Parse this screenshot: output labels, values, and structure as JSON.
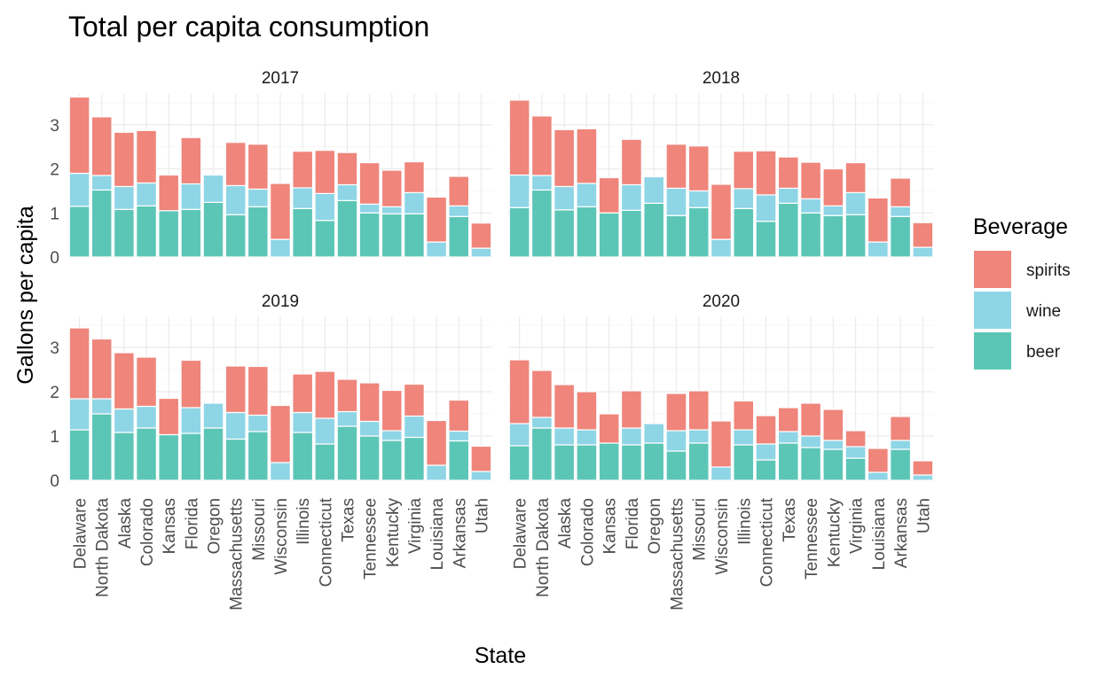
{
  "chart_data": {
    "type": "bar",
    "stacked": true,
    "title": "Total per capita consumption",
    "xlabel": "State",
    "ylabel": "Gallons per capita",
    "ylim": [
      0,
      3.7
    ],
    "yticks": [
      "0",
      "1",
      "2",
      "3"
    ],
    "grid": true,
    "legend": {
      "title": "Beverage",
      "position": "right",
      "items": [
        "spirits",
        "wine",
        "beer"
      ]
    },
    "colors": {
      "spirits": "#ef857b",
      "wine": "#8ed5e6",
      "beer": "#5cc6b6"
    },
    "categories": [
      "Delaware",
      "North Dakota",
      "Alaska",
      "Colorado",
      "Kansas",
      "Florida",
      "Oregon",
      "Massachusetts",
      "Missouri",
      "Wisconsin",
      "Illinois",
      "Connecticut",
      "Texas",
      "Tennessee",
      "Kentucky",
      "Virginia",
      "Louisiana",
      "Arkansas",
      "Utah"
    ],
    "panels": [
      {
        "facet": "2017",
        "series": [
          {
            "name": "beer",
            "values": [
              1.15,
              1.52,
              1.08,
              1.16,
              1.05,
              1.08,
              1.24,
              0.96,
              1.14,
              0.0,
              1.1,
              0.83,
              1.28,
              1.0,
              0.98,
              0.98,
              0.0,
              0.92,
              0.0
            ]
          },
          {
            "name": "wine",
            "values": [
              0.75,
              0.33,
              0.52,
              0.52,
              0.0,
              0.58,
              0.62,
              0.66,
              0.4,
              0.4,
              0.47,
              0.61,
              0.36,
              0.2,
              0.16,
              0.48,
              0.34,
              0.24,
              0.2
            ]
          },
          {
            "name": "spirits",
            "values": [
              1.73,
              1.33,
              1.23,
              1.19,
              0.81,
              1.05,
              0.0,
              0.98,
              1.02,
              1.27,
              0.83,
              0.98,
              0.73,
              0.94,
              0.83,
              0.7,
              1.02,
              0.67,
              0.57
            ]
          }
        ]
      },
      {
        "facet": "2018",
        "series": [
          {
            "name": "beer",
            "values": [
              1.12,
              1.52,
              1.07,
              1.14,
              1.0,
              1.06,
              1.22,
              0.94,
              1.12,
              0.0,
              1.1,
              0.81,
              1.22,
              1.0,
              0.94,
              0.96,
              0.0,
              0.92,
              0.0
            ]
          },
          {
            "name": "wine",
            "values": [
              0.74,
              0.33,
              0.53,
              0.53,
              0.0,
              0.58,
              0.6,
              0.62,
              0.38,
              0.4,
              0.45,
              0.6,
              0.34,
              0.32,
              0.22,
              0.5,
              0.34,
              0.22,
              0.22
            ]
          },
          {
            "name": "spirits",
            "values": [
              1.7,
              1.35,
              1.29,
              1.24,
              0.8,
              1.03,
              0.0,
              1.0,
              1.02,
              1.25,
              0.85,
              1.0,
              0.71,
              0.83,
              0.84,
              0.68,
              1.0,
              0.65,
              0.56
            ]
          }
        ]
      },
      {
        "facet": "2019",
        "series": [
          {
            "name": "beer",
            "values": [
              1.14,
              1.5,
              1.08,
              1.18,
              1.03,
              1.06,
              1.18,
              0.93,
              1.1,
              0.0,
              1.08,
              0.82,
              1.22,
              1.0,
              0.9,
              0.97,
              0.0,
              0.89,
              0.0
            ]
          },
          {
            "name": "wine",
            "values": [
              0.7,
              0.34,
              0.53,
              0.49,
              0.0,
              0.58,
              0.56,
              0.6,
              0.37,
              0.4,
              0.45,
              0.58,
              0.33,
              0.33,
              0.22,
              0.48,
              0.34,
              0.22,
              0.2
            ]
          },
          {
            "name": "spirits",
            "values": [
              1.6,
              1.35,
              1.27,
              1.11,
              0.82,
              1.07,
              0.0,
              1.05,
              1.1,
              1.29,
              0.87,
              1.06,
              0.73,
              0.87,
              0.91,
              0.72,
              1.01,
              0.7,
              0.57
            ]
          }
        ]
      },
      {
        "facet": "2020",
        "series": [
          {
            "name": "beer",
            "values": [
              0.78,
              1.18,
              0.8,
              0.8,
              0.84,
              0.8,
              0.84,
              0.66,
              0.84,
              0.0,
              0.8,
              0.46,
              0.84,
              0.74,
              0.7,
              0.5,
              0.0,
              0.7,
              0.0
            ]
          },
          {
            "name": "wine",
            "values": [
              0.5,
              0.24,
              0.38,
              0.34,
              0.0,
              0.38,
              0.44,
              0.46,
              0.3,
              0.3,
              0.34,
              0.36,
              0.26,
              0.26,
              0.2,
              0.26,
              0.18,
              0.2,
              0.12
            ]
          },
          {
            "name": "spirits",
            "values": [
              1.44,
              1.06,
              0.98,
              0.86,
              0.66,
              0.84,
              0.0,
              0.84,
              0.88,
              1.04,
              0.65,
              0.64,
              0.54,
              0.74,
              0.7,
              0.36,
              0.54,
              0.54,
              0.32
            ]
          }
        ]
      }
    ]
  }
}
